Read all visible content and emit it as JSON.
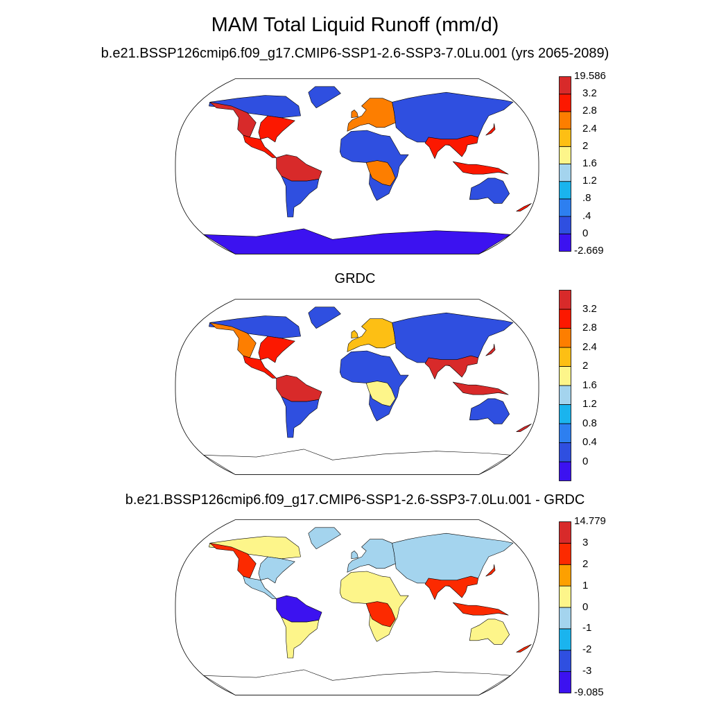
{
  "titles": {
    "main": "MAM Total Liquid Runoff (mm/d)",
    "panel1": "b.e21.BSSP126cmip6.f09_g17.CMIP6-SSP1-2.6-SSP3-7.0Lu.001 (yrs 2065-2089)",
    "panel2": "GRDC",
    "panel3": "b.e21.BSSP126cmip6.f09_g17.CMIP6-SSP1-2.6-SSP3-7.0Lu.001 - GRDC"
  },
  "colorbars": [
    {
      "id": "cb1",
      "colors": [
        "#3c12f0",
        "#2f4fe0",
        "#2d7ff0",
        "#1ab4ee",
        "#a4d4ee",
        "#fdf58a",
        "#fdbf14",
        "#fd7e00",
        "#fc1800",
        "#d82a2a"
      ],
      "labels": [
        "-2.669",
        "0",
        ".4",
        ".8",
        "1.2",
        "1.6",
        "2",
        "2.4",
        "2.8",
        "3.2",
        "19.586"
      ],
      "endLabels": true
    },
    {
      "id": "cb2",
      "colors": [
        "#3c12f0",
        "#2f4fe0",
        "#2d7ff0",
        "#1ab4ee",
        "#a4d4ee",
        "#fdf58a",
        "#fdbf14",
        "#fd7e00",
        "#fc1800",
        "#d82a2a"
      ],
      "labels": [
        "0",
        "0.4",
        "0.8",
        "1.2",
        "1.6",
        "2",
        "2.4",
        "2.8",
        "3.2"
      ],
      "endLabels": false
    },
    {
      "id": "cb3",
      "colors": [
        "#3c12f0",
        "#2f4fe0",
        "#1ab4ee",
        "#a4d4ee",
        "#fdf58a",
        "#fda000",
        "#fc2a00",
        "#d82a2a"
      ],
      "labels": [
        "-9.085",
        "-3",
        "-2",
        "-1",
        "0",
        "1",
        "2",
        "3",
        "14.779"
      ],
      "endLabels": true
    }
  ],
  "maps": [
    {
      "id": "map1",
      "ocean": "#ffffff",
      "land": {
        "na_west": "#d82a2a",
        "na_north": "#2f4fe0",
        "na_east": "#fc1800",
        "sa_north": "#d82a2a",
        "sa_south": "#2f4fe0",
        "europe": "#fd7e00",
        "africa": "#2f4fe0",
        "africa_central": "#fd7e00",
        "asia": "#2f4fe0",
        "asia_south": "#fc1800",
        "australia": "#2f4fe0",
        "antarctica": "#3c12f0",
        "greenland": "#2f4fe0"
      }
    },
    {
      "id": "map2",
      "ocean": "#ffffff",
      "land": {
        "na_west": "#fd7e00",
        "na_north": "#2f4fe0",
        "na_east": "#fc1800",
        "sa_north": "#d82a2a",
        "sa_south": "#2f4fe0",
        "europe": "#fdbf14",
        "africa": "#2f4fe0",
        "africa_central": "#fdf58a",
        "asia": "#2f4fe0",
        "asia_south": "#d82a2a",
        "australia": "#2f4fe0",
        "antarctica": "#ffffff",
        "greenland": "#2f4fe0"
      }
    },
    {
      "id": "map3",
      "ocean": "#ffffff",
      "land": {
        "na_west": "#fc2a00",
        "na_north": "#fdf58a",
        "na_east": "#a4d4ee",
        "sa_north": "#3c12f0",
        "sa_south": "#fdf58a",
        "europe": "#a4d4ee",
        "africa": "#fdf58a",
        "africa_central": "#fc2a00",
        "asia": "#a4d4ee",
        "asia_south": "#fc2a00",
        "australia": "#fdf58a",
        "antarctica": "#ffffff",
        "greenland": "#a4d4ee"
      }
    }
  ]
}
